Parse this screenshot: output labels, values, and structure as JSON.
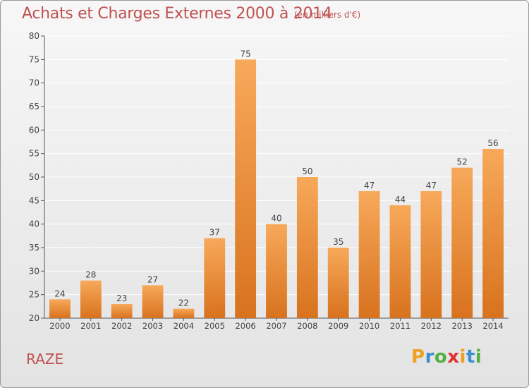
{
  "header": {
    "title": "Achats et Charges Externes 2000 à 2014",
    "subtitle": "(en milliers d'€)"
  },
  "footer": {
    "commune": "RAZE",
    "brand_letters": [
      "P",
      "r",
      "o",
      "x",
      "i",
      "t",
      "i"
    ],
    "brand_colors": [
      "#f0a020",
      "#3a8fd0",
      "#50b040",
      "#e03030",
      "#f0a020",
      "#3a8fd0",
      "#50b040"
    ]
  },
  "colors": {
    "bar_light": "#f7a95a",
    "bar_dark": "#d8721e",
    "title": "#c05050",
    "grid": "#ffffff",
    "axis": "#555555"
  },
  "chart_data": {
    "type": "bar",
    "title": "Achats et Charges Externes 2000 à 2014",
    "subtitle": "(en milliers d'€)",
    "xlabel": "",
    "ylabel": "",
    "categories": [
      "2000",
      "2001",
      "2002",
      "2003",
      "2004",
      "2005",
      "2006",
      "2007",
      "2008",
      "2009",
      "2010",
      "2011",
      "2012",
      "2013",
      "2014"
    ],
    "values": [
      24,
      28,
      23,
      27,
      22,
      37,
      75,
      40,
      50,
      35,
      47,
      44,
      47,
      52,
      56
    ],
    "ylim": [
      20,
      80
    ],
    "yticks": [
      20,
      25,
      30,
      35,
      40,
      45,
      50,
      55,
      60,
      65,
      70,
      75,
      80
    ],
    "grid": true,
    "data_labels": true
  }
}
